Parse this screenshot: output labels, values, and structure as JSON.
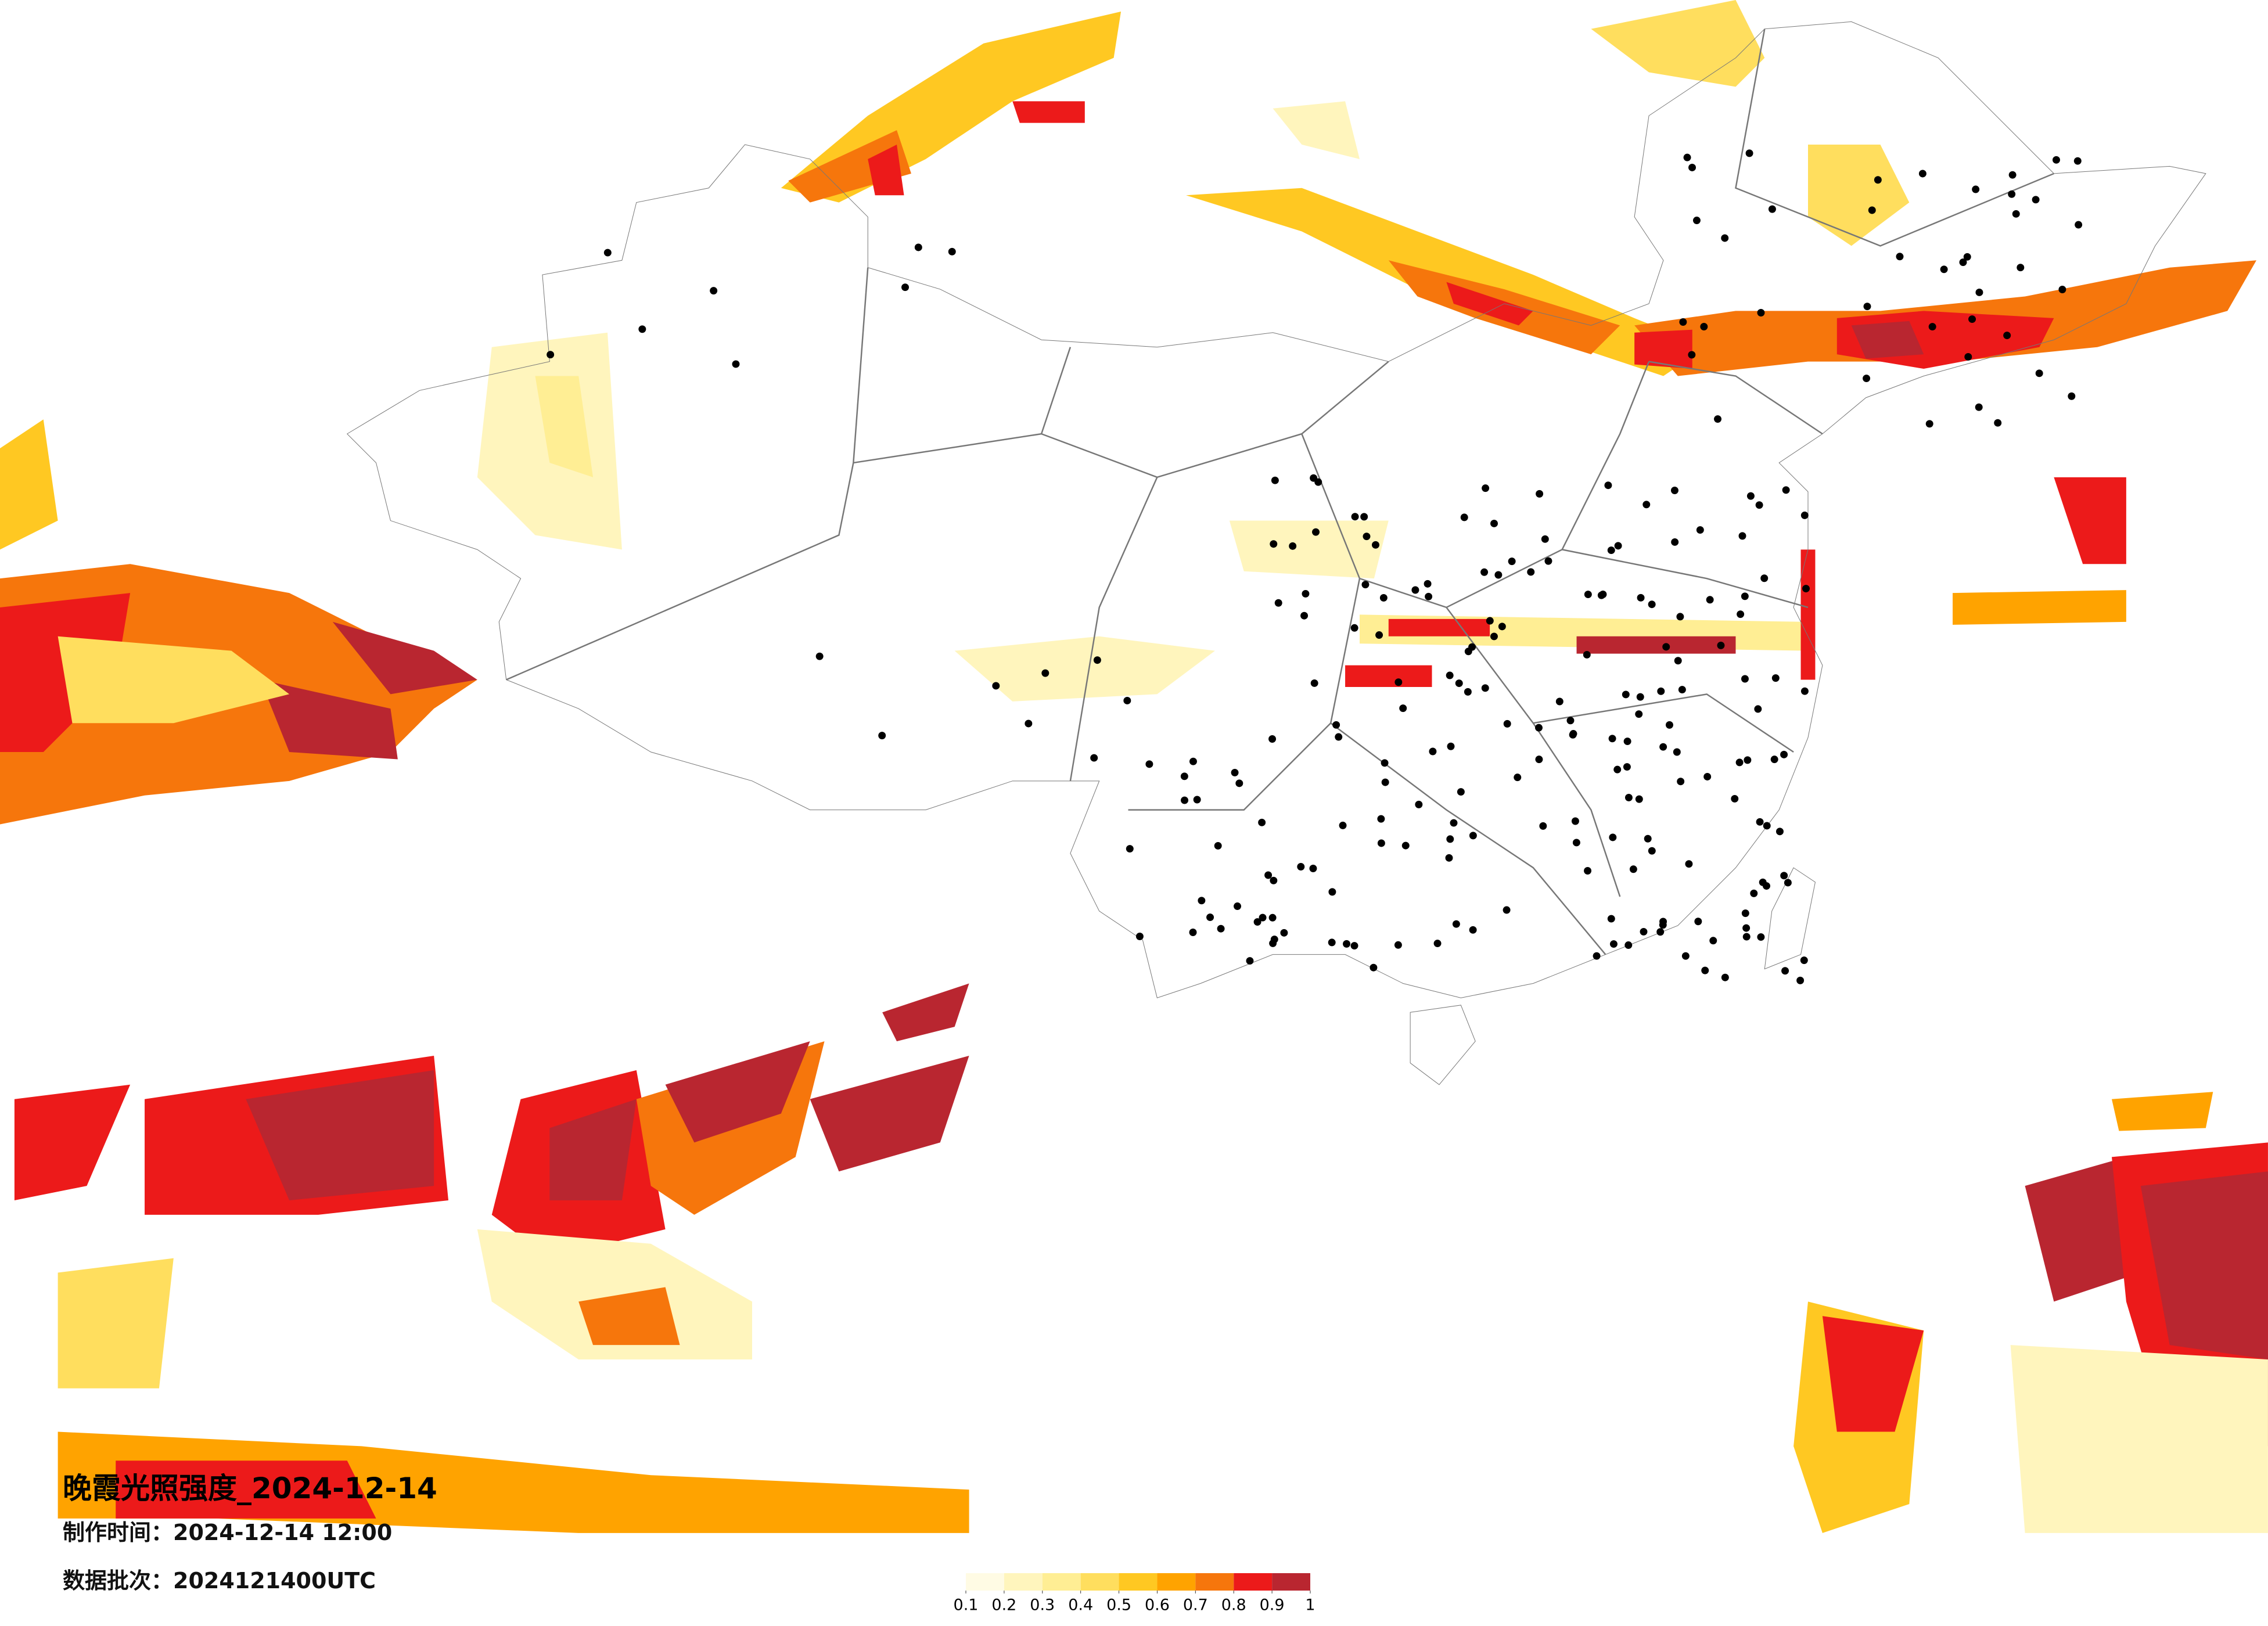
{
  "header": {
    "title": "晚霞光照强度_2024-12-14",
    "made_time": "制作时间：2024-12-14 12:00",
    "batch": "数据批次：2024121400UTC"
  },
  "colorbar": {
    "ticks": [
      0.1,
      0.2,
      0.3,
      0.4,
      0.5,
      0.6,
      0.7,
      0.8,
      0.9,
      1
    ],
    "colors": [
      "#fffbe4",
      "#fff5bd",
      "#ffee94",
      "#ffde5e",
      "#ffc822",
      "#ffa300",
      "#f6760c",
      "#ec1a1a",
      "#b92630"
    ]
  }
}
